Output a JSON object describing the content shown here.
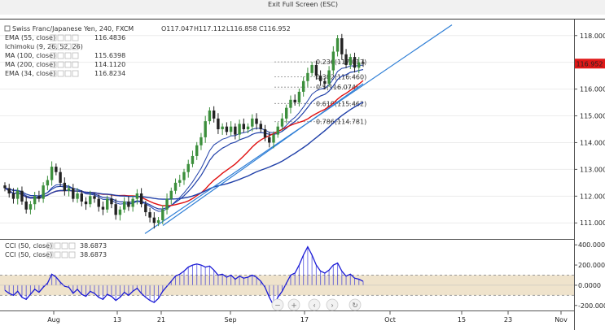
{
  "top_bar": {
    "exit_label": "Exit Full Screen (ESC)"
  },
  "header": {
    "title": "Swiss Franc/Japanese Yen, 240, FXCM",
    "ohlc": [
      {
        "key": "O",
        "value": "117.047"
      },
      {
        "key": "H",
        "value": "117.112"
      },
      {
        "key": "L",
        "value": "116.858"
      },
      {
        "key": "C",
        "value": "116.952"
      }
    ]
  },
  "legend": [
    {
      "name": "EMA (55, close)",
      "value": "116.4836",
      "color": "#1f3fa8"
    },
    {
      "name": "Ichimoku (9, 26, 52, 26)",
      "value": "",
      "color": "#999999"
    },
    {
      "name": "MA (100, close)",
      "value": "115.6398",
      "color": "#e01010"
    },
    {
      "name": "MA (200, close)",
      "value": "114.1120",
      "color": "#1f3fa8"
    },
    {
      "name": "EMA (34, close)",
      "value": "116.8234",
      "color": "#1f3fa8"
    }
  ],
  "cci_legend": [
    {
      "name": "CCI (50, close)",
      "value": "38.6873"
    },
    {
      "name": "CCI (50, close)",
      "value": "38.6873"
    }
  ],
  "price_tag": {
    "value": "116.952",
    "color": "#e01818"
  },
  "nav_icons": [
    "zoom-out-icon",
    "zoom-in-icon",
    "scroll-left-icon",
    "scroll-right-icon",
    "reset-icon"
  ],
  "colors": {
    "up": "#3c8f3c",
    "down": "#222222",
    "cci_line": "#1a1ad6",
    "cci_band": "#efe3cc",
    "trendline": "#2f7fd6"
  },
  "chart_data": {
    "type": "candlestick",
    "symbol": "CHFJPY",
    "interval": "240",
    "price_ylim": [
      110.4,
      118.6
    ],
    "y_ticks": [
      111.0,
      112.0,
      113.0,
      114.0,
      115.0,
      116.0,
      117.0,
      118.0
    ],
    "y_tick_labels": [
      "111.000",
      "112.000",
      "113.000",
      "114.000",
      "115.000",
      "116.000",
      "117.000",
      "118.000"
    ],
    "x_tick_labels": [
      "Aug",
      "13",
      "21",
      "Sep",
      "17",
      "Oct",
      "15",
      "23",
      "Nov"
    ],
    "closes": [
      112.3,
      112.1,
      111.9,
      112.2,
      111.8,
      111.5,
      111.7,
      112.0,
      111.9,
      112.4,
      112.6,
      113.1,
      112.9,
      112.5,
      112.2,
      112.3,
      111.9,
      112.1,
      111.8,
      111.7,
      112.0,
      111.9,
      111.6,
      111.5,
      111.9,
      111.7,
      111.3,
      111.5,
      111.8,
      111.6,
      111.9,
      112.1,
      111.7,
      111.4,
      111.2,
      111.0,
      111.1,
      111.5,
      111.9,
      112.2,
      112.5,
      112.6,
      112.9,
      113.2,
      113.5,
      113.9,
      114.2,
      114.8,
      115.2,
      114.9,
      114.5,
      114.6,
      114.4,
      114.6,
      114.3,
      114.7,
      114.5,
      114.6,
      114.9,
      114.7,
      114.5,
      114.2,
      114.0,
      114.3,
      114.6,
      114.9,
      115.3,
      115.6,
      115.5,
      115.9,
      116.3,
      116.6,
      116.9,
      116.5,
      116.3,
      116.2,
      116.7,
      117.4,
      117.9,
      117.3,
      116.9,
      117.2,
      116.8,
      117.0,
      116.952
    ],
    "cci_ylim": [
      -250,
      450
    ],
    "cci_ticks": [
      400,
      200,
      0,
      -200
    ],
    "cci_tick_labels": [
      "400.0000",
      "200.0000",
      "0.0000",
      "-200.0000"
    ],
    "cci_band": [
      -100,
      100
    ],
    "cci": [
      -50,
      -80,
      -100,
      -60,
      -120,
      -140,
      -90,
      -40,
      -70,
      -20,
      20,
      110,
      80,
      30,
      -10,
      -20,
      -80,
      -40,
      -90,
      -110,
      -60,
      -80,
      -120,
      -140,
      -90,
      -110,
      -150,
      -120,
      -70,
      -100,
      -60,
      -30,
      -80,
      -120,
      -150,
      -170,
      -130,
      -60,
      -10,
      40,
      90,
      110,
      140,
      180,
      200,
      210,
      200,
      180,
      190,
      150,
      100,
      110,
      80,
      100,
      60,
      90,
      70,
      80,
      100,
      80,
      40,
      -20,
      -120,
      -200,
      -120,
      -60,
      20,
      100,
      120,
      200,
      300,
      380,
      300,
      200,
      140,
      120,
      150,
      200,
      220,
      140,
      90,
      110,
      70,
      60,
      38.6873
    ],
    "fibonacci": [
      {
        "level": "0.236",
        "label": "0.236(117.017)",
        "price": 117.017
      },
      {
        "level": "0.382",
        "label": "0.382(116.460)",
        "price": 116.46
      },
      {
        "level": "0.5",
        "label": "0.5(116.074)",
        "price": 116.074
      },
      {
        "level": "0.618",
        "label": "0.618(115.462)",
        "price": 115.462
      },
      {
        "level": "0.786",
        "label": "0.786(114.781)",
        "price": 114.781
      }
    ]
  }
}
